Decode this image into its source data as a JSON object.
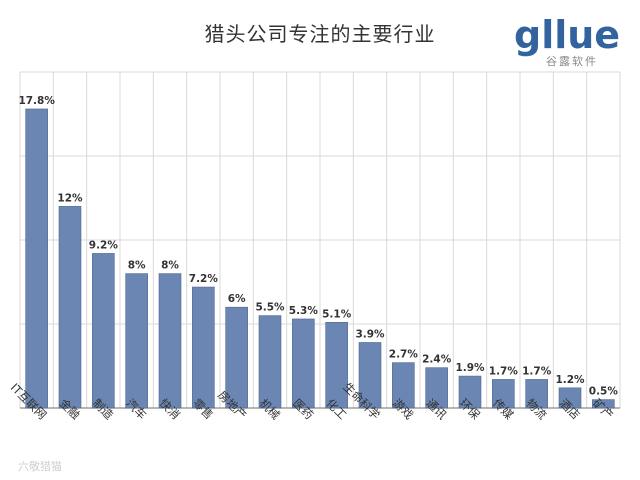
{
  "title": "猎头公司专注的主要行业",
  "logo": {
    "wordmark": "gllue",
    "subtitle": "谷露软件"
  },
  "watermark": "六敬猎猫",
  "colors": {
    "bar": "#6b86b3",
    "bar_edge": "#4f6891",
    "grid": "#d9d9d9",
    "axis": "#8a8a8a",
    "logo_blue": "#33639f",
    "logo_gray": "#8a8a8a"
  },
  "chart_data": {
    "type": "bar",
    "title": "猎头公司专注的主要行业",
    "categories": [
      "IT互联网",
      "金融",
      "制造",
      "汽车",
      "快消",
      "零售",
      "房地产",
      "机械",
      "医药",
      "化工",
      "生命科学",
      "游戏",
      "通讯",
      "环保",
      "传媒",
      "物流",
      "酒店",
      "矿产"
    ],
    "values": [
      17.8,
      12,
      9.2,
      8,
      8,
      7.2,
      6,
      5.5,
      5.3,
      5.1,
      3.9,
      2.7,
      2.4,
      1.9,
      1.7,
      1.7,
      1.2,
      0.5
    ],
    "value_labels": [
      "17.8%",
      "12%",
      "9.2%",
      "8%",
      "8%",
      "7.2%",
      "6%",
      "5.5%",
      "5.3%",
      "5.1%",
      "3.9%",
      "2.7%",
      "2.4%",
      "1.9%",
      "1.7%",
      "1.7%",
      "1.2%",
      "0.5%"
    ],
    "ylim": [
      0,
      20
    ],
    "grid": true
  }
}
